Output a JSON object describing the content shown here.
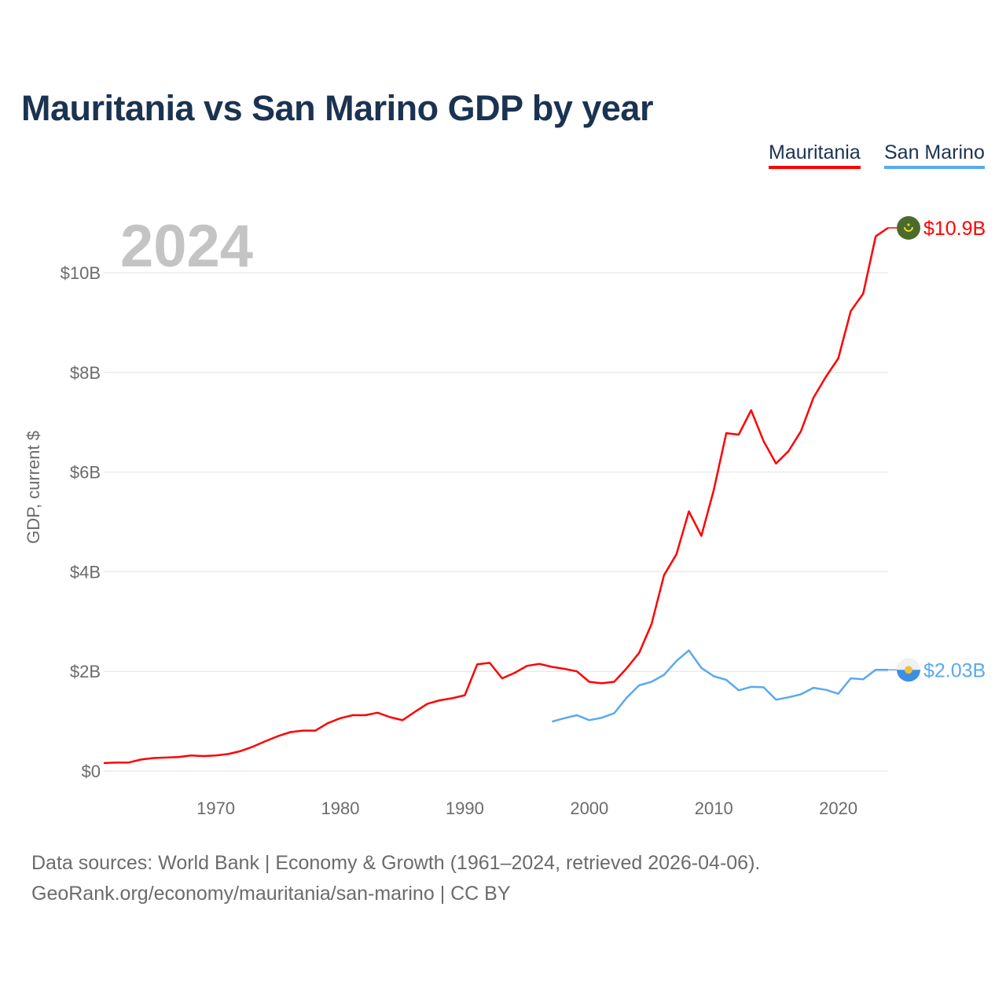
{
  "chart_data": {
    "type": "line",
    "title": "Mauritania vs San Marino GDP by year",
    "ylabel": "GDP, current $",
    "xlabel": "",
    "current_year_label": "2024",
    "ylim": [
      0,
      11
    ],
    "xlim": [
      1961,
      2024
    ],
    "y_ticks": [
      0,
      2,
      4,
      6,
      8,
      10
    ],
    "y_tick_labels": [
      "$0",
      "$2B",
      "$4B",
      "$6B",
      "$8B",
      "$10B"
    ],
    "x_ticks": [
      1970,
      1980,
      1990,
      2000,
      2010,
      2020
    ],
    "x_tick_labels": [
      "1970",
      "1980",
      "1990",
      "2000",
      "2010",
      "2020"
    ],
    "grid": true,
    "legend_position": "top-right",
    "series": [
      {
        "name": "Mauritania",
        "color": "#ff0000",
        "end_label": "$10.9B",
        "flag_icon": "mauritania-flag",
        "start_year": 1961,
        "values": [
          0.16,
          0.17,
          0.17,
          0.23,
          0.26,
          0.27,
          0.28,
          0.31,
          0.3,
          0.31,
          0.34,
          0.4,
          0.49,
          0.6,
          0.7,
          0.78,
          0.81,
          0.81,
          0.96,
          1.06,
          1.12,
          1.12,
          1.17,
          1.08,
          1.02,
          1.19,
          1.35,
          1.42,
          1.46,
          1.52,
          2.14,
          2.17,
          1.86,
          1.97,
          2.11,
          2.15,
          2.09,
          2.05,
          2.0,
          1.79,
          1.76,
          1.79,
          2.06,
          2.37,
          2.95,
          3.93,
          4.35,
          5.21,
          4.72,
          5.64,
          6.78,
          6.75,
          7.24,
          6.62,
          6.17,
          6.42,
          6.82,
          7.49,
          7.91,
          8.28,
          9.23,
          9.58,
          10.73,
          10.9
        ]
      },
      {
        "name": "San Marino",
        "color": "#5aa9ee",
        "end_label": "$2.03B",
        "flag_icon": "san-marino-flag",
        "start_year": 1997,
        "values": [
          0.99,
          1.06,
          1.12,
          1.02,
          1.07,
          1.16,
          1.47,
          1.72,
          1.79,
          1.93,
          2.21,
          2.42,
          2.07,
          1.9,
          1.83,
          1.62,
          1.69,
          1.68,
          1.43,
          1.48,
          1.54,
          1.67,
          1.63,
          1.55,
          1.86,
          1.84,
          2.03,
          2.03
        ]
      }
    ]
  },
  "footer": {
    "line1": "Data sources: World Bank | Economy & Growth (1961–2024, retrieved 2026-04-06).",
    "line2": "GeoRank.org/economy/mauritania/san-marino | CC BY"
  }
}
